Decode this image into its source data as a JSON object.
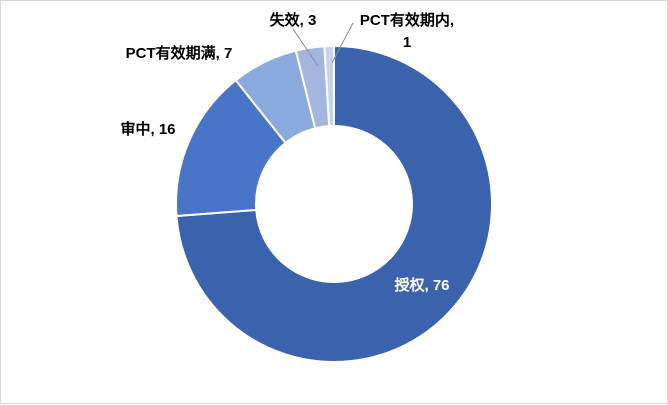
{
  "chart_data": {
    "type": "pie",
    "variant": "donut",
    "slices": [
      {
        "label": "授权",
        "value": 76,
        "display": "授权, 76",
        "color": "#3a62ad",
        "label_color": "#ffffff"
      },
      {
        "label": "审中",
        "value": 16,
        "display": "审中, 16",
        "color": "#4a74c8",
        "label_color": "#000000"
      },
      {
        "label": "PCT有效期满",
        "value": 7,
        "display": "PCT有效期满, 7",
        "color": "#8aa9dd",
        "label_color": "#000000"
      },
      {
        "label": "失效",
        "value": 3,
        "display": "失效, 3",
        "color": "#a3b6e0",
        "label_color": "#000000"
      },
      {
        "label": "PCT有效期内",
        "value": 1,
        "display_lines": [
          "PCT有效期内,",
          "1"
        ],
        "color": "#c5d3ee",
        "label_color": "#000000"
      }
    ],
    "title": "",
    "legend": "none"
  }
}
